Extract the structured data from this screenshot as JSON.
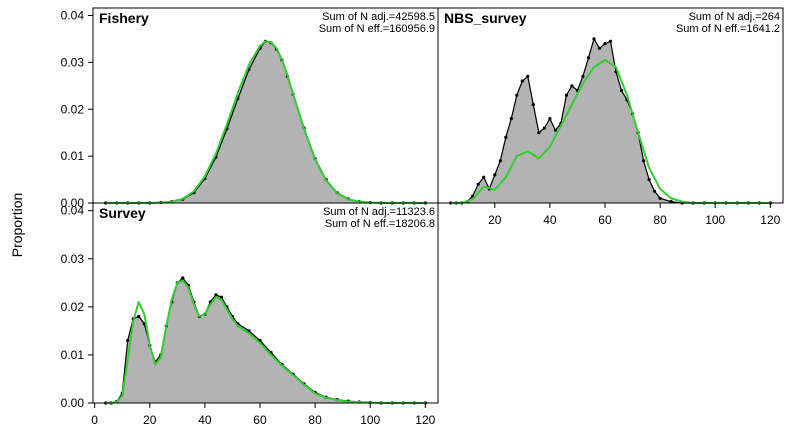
{
  "figure": {
    "ylabel": "Proportion",
    "colors": {
      "observed_fill": "#b3b3b3",
      "observed_line": "#000000",
      "expected_line": "#33cc33",
      "zero_line": "#aaaaaa",
      "frame": "#000000"
    }
  },
  "chart_data": [
    {
      "type": "area",
      "title": "Fishery",
      "annotations": [
        "Sum of N adj.=42598.5",
        "Sum of N eff.=160956.9"
      ],
      "xlim": [
        4,
        120
      ],
      "ylim": [
        0,
        0.04
      ],
      "yticks": [
        "0.00",
        "0.01",
        "0.02",
        "0.03",
        "0.04"
      ],
      "xticks": [],
      "grid": false,
      "series": [
        {
          "role": "observed",
          "x": [
            4,
            8,
            12,
            16,
            20,
            24,
            28,
            32,
            36,
            40,
            44,
            48,
            52,
            56,
            60,
            62,
            64,
            66,
            68,
            70,
            72,
            76,
            80,
            84,
            88,
            92,
            96,
            100,
            104,
            108,
            112,
            116,
            120
          ],
          "values": [
            0,
            0,
            0,
            0,
            0,
            0.0001,
            0.0003,
            0.0008,
            0.0022,
            0.0052,
            0.0098,
            0.0158,
            0.0223,
            0.0285,
            0.033,
            0.0345,
            0.0342,
            0.0328,
            0.0305,
            0.027,
            0.0232,
            0.016,
            0.0095,
            0.005,
            0.0022,
            0.0009,
            0.0003,
            0.0001,
            0,
            0,
            0,
            0,
            0
          ]
        },
        {
          "role": "expected",
          "x": [
            4,
            8,
            12,
            16,
            20,
            24,
            28,
            32,
            36,
            40,
            44,
            48,
            52,
            56,
            60,
            62,
            64,
            66,
            68,
            70,
            72,
            76,
            80,
            84,
            88,
            92,
            96,
            100,
            104,
            108,
            112,
            116,
            120
          ],
          "values": [
            0,
            0,
            0,
            0,
            0,
            0.0001,
            0.0003,
            0.0009,
            0.0025,
            0.0057,
            0.0105,
            0.0168,
            0.0235,
            0.0295,
            0.0335,
            0.0345,
            0.0343,
            0.033,
            0.0306,
            0.0272,
            0.0233,
            0.0158,
            0.0093,
            0.0048,
            0.0021,
            0.0008,
            0.0003,
            0.0001,
            0,
            0,
            0,
            0,
            0
          ]
        }
      ]
    },
    {
      "type": "area",
      "title": "NBS_survey",
      "annotations": [
        "Sum of N adj.=264",
        "Sum of N eff.=1641.2"
      ],
      "xlim": [
        4,
        120
      ],
      "ylim": [
        0,
        0.04
      ],
      "yticks": [],
      "xticks": [
        "20",
        "40",
        "60",
        "80",
        "100",
        "120"
      ],
      "grid": false,
      "series": [
        {
          "role": "observed",
          "x": [
            4,
            6,
            8,
            10,
            12,
            14,
            16,
            18,
            20,
            22,
            24,
            26,
            28,
            30,
            32,
            34,
            36,
            38,
            40,
            42,
            44,
            46,
            48,
            50,
            52,
            54,
            56,
            58,
            60,
            62,
            64,
            66,
            68,
            70,
            72,
            74,
            76,
            78,
            80,
            84,
            88,
            92,
            96,
            100,
            104,
            108,
            112,
            116,
            120
          ],
          "values": [
            0,
            0,
            0,
            0.0003,
            0.0015,
            0.004,
            0.0055,
            0.003,
            0.006,
            0.009,
            0.014,
            0.018,
            0.023,
            0.026,
            0.027,
            0.021,
            0.015,
            0.016,
            0.018,
            0.0155,
            0.017,
            0.023,
            0.025,
            0.024,
            0.027,
            0.031,
            0.035,
            0.033,
            0.034,
            0.0345,
            0.028,
            0.024,
            0.022,
            0.019,
            0.015,
            0.009,
            0.005,
            0.0025,
            0.001,
            0.0003,
            0,
            0,
            0,
            0,
            0,
            0,
            0,
            0,
            0
          ]
        },
        {
          "role": "expected",
          "x": [
            4,
            8,
            12,
            16,
            20,
            24,
            28,
            32,
            36,
            40,
            44,
            48,
            52,
            56,
            60,
            64,
            68,
            72,
            76,
            80,
            84,
            88,
            92,
            96,
            100,
            104,
            108,
            112,
            116,
            120
          ],
          "values": [
            0,
            0,
            0.0008,
            0.0035,
            0.0028,
            0.0055,
            0.01,
            0.011,
            0.0095,
            0.012,
            0.0165,
            0.021,
            0.0255,
            0.029,
            0.0305,
            0.029,
            0.023,
            0.015,
            0.0075,
            0.003,
            0.001,
            0.0003,
            0,
            0,
            0,
            0,
            0,
            0,
            0,
            0
          ]
        }
      ]
    },
    {
      "type": "area",
      "title": "Survey",
      "annotations": [
        "Sum of N adj.=11323.6",
        "Sum of N eff.=18206.8"
      ],
      "xlim": [
        4,
        120
      ],
      "ylim": [
        0,
        0.04
      ],
      "yticks": [
        "0.00",
        "0.01",
        "0.02",
        "0.03",
        "0.04"
      ],
      "xticks": [
        "0",
        "20",
        "40",
        "60",
        "80",
        "100",
        "120"
      ],
      "grid": false,
      "series": [
        {
          "role": "observed",
          "x": [
            4,
            6,
            8,
            10,
            12,
            14,
            16,
            18,
            20,
            22,
            24,
            26,
            28,
            30,
            32,
            34,
            36,
            38,
            40,
            42,
            44,
            46,
            48,
            50,
            52,
            56,
            60,
            64,
            68,
            72,
            76,
            80,
            84,
            88,
            92,
            96,
            100,
            104,
            108,
            112,
            116,
            120
          ],
          "values": [
            0,
            0,
            0.0003,
            0.002,
            0.013,
            0.0175,
            0.018,
            0.0165,
            0.012,
            0.0085,
            0.01,
            0.016,
            0.021,
            0.025,
            0.026,
            0.0245,
            0.021,
            0.018,
            0.0185,
            0.021,
            0.0225,
            0.022,
            0.02,
            0.018,
            0.0165,
            0.015,
            0.013,
            0.0105,
            0.008,
            0.006,
            0.004,
            0.0022,
            0.0012,
            0.0007,
            0.0004,
            0.0002,
            0.0001,
            0,
            0,
            0,
            0,
            0
          ]
        },
        {
          "role": "expected",
          "x": [
            4,
            6,
            8,
            10,
            12,
            14,
            16,
            18,
            20,
            22,
            24,
            26,
            28,
            30,
            32,
            34,
            36,
            38,
            40,
            42,
            44,
            46,
            48,
            50,
            52,
            56,
            60,
            64,
            68,
            72,
            76,
            80,
            84,
            88,
            92,
            96,
            100,
            104,
            108,
            112,
            116,
            120
          ],
          "values": [
            0,
            0,
            0.0002,
            0.0015,
            0.009,
            0.017,
            0.021,
            0.0185,
            0.012,
            0.008,
            0.0095,
            0.016,
            0.0215,
            0.025,
            0.0255,
            0.024,
            0.0205,
            0.018,
            0.0185,
            0.0205,
            0.022,
            0.0215,
            0.0195,
            0.0175,
            0.016,
            0.0145,
            0.0125,
            0.01,
            0.0078,
            0.0058,
            0.0038,
            0.002,
            0.0011,
            0.0006,
            0.0003,
            0.0002,
            0.0001,
            0,
            0,
            0,
            0,
            0
          ]
        }
      ]
    }
  ]
}
